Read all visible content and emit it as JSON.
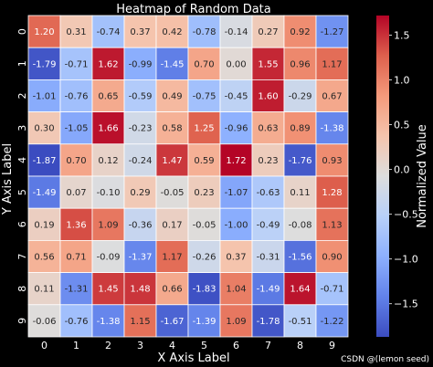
{
  "chart_data": {
    "type": "heatmap",
    "title": "Heatmap of Random Data",
    "xlabel": "X Axis Label",
    "ylabel": "Y Axis Label",
    "x_ticks": [
      "0",
      "1",
      "2",
      "3",
      "4",
      "5",
      "6",
      "7",
      "8",
      "9"
    ],
    "y_ticks": [
      "0",
      "1",
      "2",
      "3",
      "4",
      "5",
      "6",
      "7",
      "8",
      "9"
    ],
    "colormap": "coolwarm",
    "colorbar": {
      "label": "Normalized Value",
      "range": [
        -1.87,
        1.72
      ],
      "ticks": [
        "1.5",
        "1.0",
        "0.5",
        "0.0",
        "−0.5",
        "−1.0",
        "−1.5"
      ],
      "tick_values": [
        1.5,
        1.0,
        0.5,
        0.0,
        -0.5,
        -1.0,
        -1.5
      ]
    },
    "values": [
      [
        1.2,
        0.31,
        -0.74,
        0.37,
        0.42,
        -0.78,
        -0.14,
        0.27,
        0.92,
        -1.27
      ],
      [
        -1.79,
        -0.71,
        1.62,
        -0.99,
        -1.45,
        0.7,
        0.0,
        1.55,
        0.96,
        1.17
      ],
      [
        -1.01,
        -0.76,
        0.65,
        -0.59,
        0.49,
        -0.75,
        -0.45,
        1.6,
        -0.29,
        0.67
      ],
      [
        0.3,
        -1.05,
        1.66,
        -0.23,
        0.58,
        1.25,
        -0.96,
        0.63,
        0.89,
        -1.38
      ],
      [
        -1.87,
        0.7,
        0.12,
        -0.24,
        1.47,
        0.59,
        1.72,
        0.23,
        -1.76,
        0.93
      ],
      [
        -1.49,
        0.07,
        -0.1,
        0.29,
        -0.05,
        0.23,
        -1.07,
        -0.63,
        0.11,
        1.28
      ],
      [
        0.19,
        1.36,
        1.09,
        -0.36,
        0.17,
        -0.05,
        -1.0,
        -0.49,
        -0.08,
        1.13
      ],
      [
        0.56,
        0.71,
        -0.09,
        -1.37,
        1.17,
        -0.26,
        0.37,
        -0.31,
        -1.56,
        0.9
      ],
      [
        0.11,
        -1.31,
        1.45,
        1.48,
        0.66,
        -1.83,
        1.04,
        -1.49,
        1.64,
        -0.71
      ],
      [
        -0.06,
        -0.76,
        -1.38,
        1.15,
        -1.67,
        -1.39,
        1.09,
        -1.78,
        -0.51,
        -1.22
      ]
    ],
    "labels": [
      [
        "1.20",
        "0.31",
        "-0.74",
        "0.37",
        "0.42",
        "-0.78",
        "-0.14",
        "0.27",
        "0.92",
        "-1.27"
      ],
      [
        "-1.79",
        "-0.71",
        "1.62",
        "-0.99",
        "-1.45",
        "0.70",
        "0.00",
        "1.55",
        "0.96",
        "1.17"
      ],
      [
        "-1.01",
        "-0.76",
        "0.65",
        "-0.59",
        "0.49",
        "-0.75",
        "-0.45",
        "1.60",
        "-0.29",
        "0.67"
      ],
      [
        "0.30",
        "-1.05",
        "1.66",
        "-0.23",
        "0.58",
        "1.25",
        "-0.96",
        "0.63",
        "0.89",
        "-1.38"
      ],
      [
        "-1.87",
        "0.70",
        "0.12",
        "-0.24",
        "1.47",
        "0.59",
        "1.72",
        "0.23",
        "-1.76",
        "0.93"
      ],
      [
        "-1.49",
        "0.07",
        "-0.10",
        "0.29",
        "-0.05",
        "0.23",
        "-1.07",
        "-0.63",
        "0.11",
        "1.28"
      ],
      [
        "0.19",
        "1.36",
        "1.09",
        "-0.36",
        "0.17",
        "-0.05",
        "-1.00",
        "-0.49",
        "-0.08",
        "1.13"
      ],
      [
        "0.56",
        "0.71",
        "-0.09",
        "-1.37",
        "1.17",
        "-0.26",
        "0.37",
        "-0.31",
        "-1.56",
        "0.90"
      ],
      [
        "0.11",
        "-1.31",
        "1.45",
        "1.48",
        "0.66",
        "-1.83",
        "1.04",
        "-1.49",
        "1.64",
        "-0.71"
      ],
      [
        "-0.06",
        "-0.76",
        "-1.38",
        "1.15",
        "-1.67",
        "-1.39",
        "1.09",
        "-1.78",
        "-0.51",
        "-1.22"
      ]
    ]
  },
  "watermark": "CSDN @(lemon seed)"
}
